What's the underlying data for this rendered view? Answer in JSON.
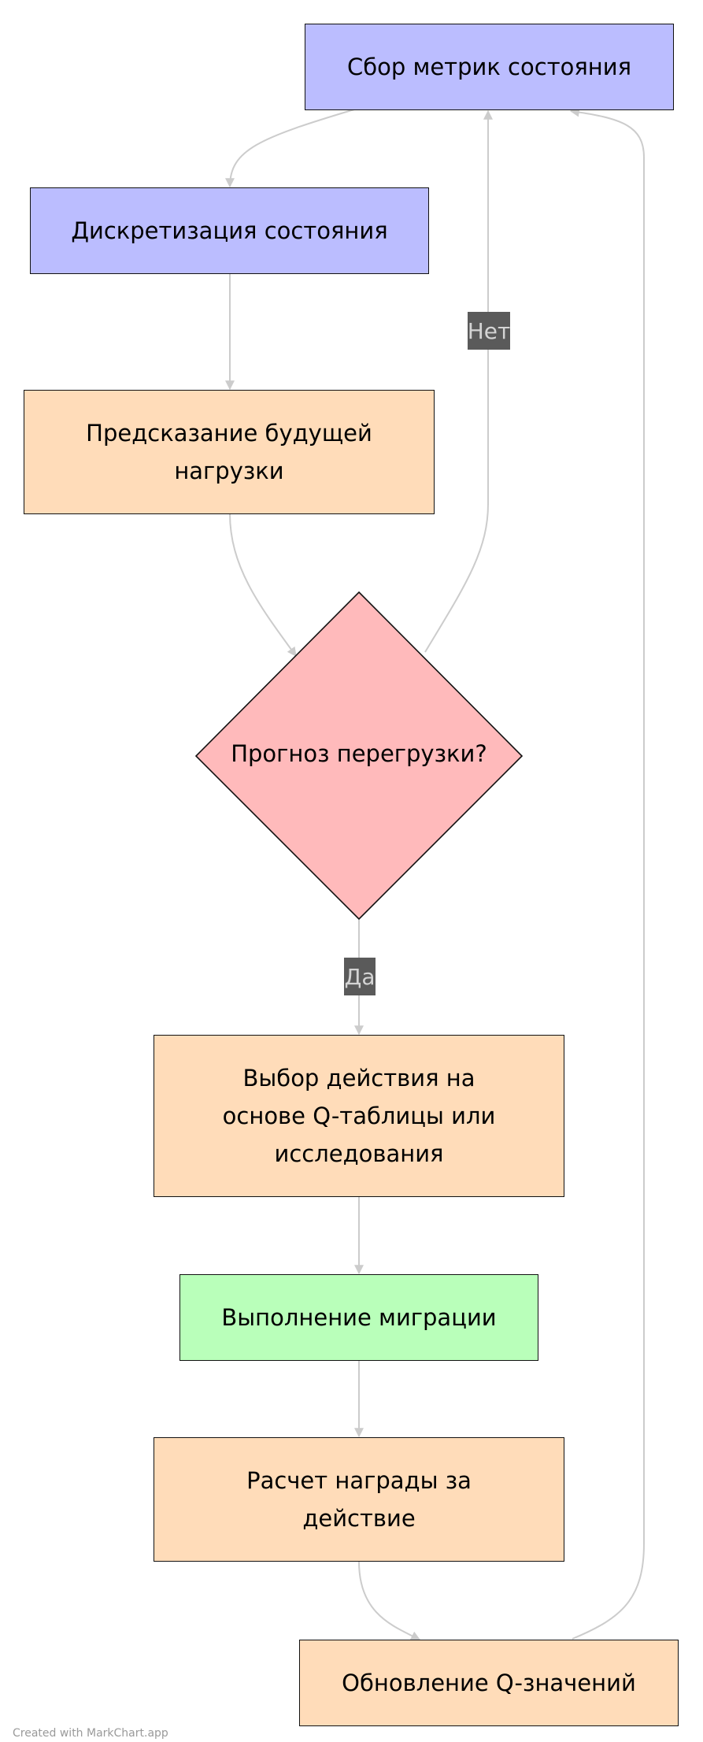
{
  "colors": {
    "blue": "#bbbdff",
    "orange": "#ffdcb9",
    "red": "#ffbabb",
    "green": "#b9ffba",
    "edge": "#cccccc",
    "badge_bg": "#5a5a5a"
  },
  "nodes": {
    "collect_metrics": "Сбор метрик состояния",
    "discretize_state": "Дискретизация состояния",
    "predict_load_line1": "Предсказание будущей",
    "predict_load_line2": "нагрузки",
    "overload_decision": "Прогноз перегрузки?",
    "choose_action_line1": "Выбор действия на",
    "choose_action_line2": "основе Q-таблицы или",
    "choose_action_line3": "исследования",
    "execute_migration": "Выполнение миграции",
    "compute_reward_line1": "Расчет награды за",
    "compute_reward_line2": "действие",
    "update_q": "Обновление Q-значений"
  },
  "edge_labels": {
    "no": "Нет",
    "yes": "Да"
  },
  "footer": "Created with MarkChart.app"
}
